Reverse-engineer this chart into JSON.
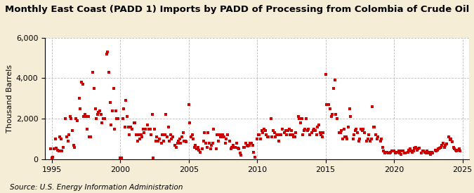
{
  "title": "Monthly East Coast (PADD 1) Imports by PADD of Processing from Colombia of Crude Oil",
  "ylabel": "Thousand Barrels",
  "source": "Source: U.S. Energy Information Administration",
  "bg_color": "#F5EDD6",
  "plot_bg_color": "#FFFFFF",
  "marker_color": "#CC0000",
  "marker": "s",
  "markersize": 3.5,
  "xlim": [
    1994.5,
    2025.5
  ],
  "ylim": [
    0,
    6000
  ],
  "yticks": [
    0,
    2000,
    4000,
    6000
  ],
  "ytick_labels": [
    "0",
    "2,000",
    "4,000",
    "6,000"
  ],
  "xticks": [
    1995,
    2000,
    2005,
    2010,
    2015,
    2020,
    2025
  ],
  "grid_style": "--",
  "grid_color": "#BBBBBB",
  "title_fontsize": 9.5,
  "label_fontsize": 8,
  "tick_fontsize": 8,
  "source_fontsize": 7.5,
  "data": {
    "dates": [
      1994.917,
      1995.0,
      1995.083,
      1995.167,
      1995.25,
      1995.333,
      1995.417,
      1995.5,
      1995.583,
      1995.667,
      1995.75,
      1995.833,
      1996.0,
      1996.083,
      1996.167,
      1996.25,
      1996.333,
      1996.417,
      1996.5,
      1996.583,
      1996.667,
      1996.75,
      1996.833,
      1997.0,
      1997.083,
      1997.167,
      1997.25,
      1997.333,
      1997.417,
      1997.5,
      1997.583,
      1997.667,
      1997.75,
      1997.833,
      1998.0,
      1998.083,
      1998.167,
      1998.25,
      1998.333,
      1998.417,
      1998.5,
      1998.583,
      1998.667,
      1998.75,
      1998.833,
      1999.0,
      1999.083,
      1999.167,
      1999.25,
      1999.333,
      1999.417,
      1999.5,
      1999.583,
      1999.667,
      1999.75,
      1999.833,
      2000.0,
      2000.083,
      2000.167,
      2000.25,
      2000.333,
      2000.417,
      2000.5,
      2000.583,
      2000.667,
      2000.75,
      2000.833,
      2001.0,
      2001.083,
      2001.167,
      2001.25,
      2001.333,
      2001.417,
      2001.5,
      2001.583,
      2001.667,
      2001.75,
      2001.833,
      2002.0,
      2002.083,
      2002.167,
      2002.25,
      2002.333,
      2002.417,
      2002.5,
      2002.583,
      2002.667,
      2002.75,
      2002.833,
      2003.0,
      2003.083,
      2003.167,
      2003.25,
      2003.333,
      2003.417,
      2003.5,
      2003.583,
      2003.667,
      2003.75,
      2003.833,
      2004.0,
      2004.083,
      2004.167,
      2004.25,
      2004.333,
      2004.417,
      2004.5,
      2004.583,
      2004.667,
      2004.75,
      2004.833,
      2005.0,
      2005.083,
      2005.167,
      2005.25,
      2005.333,
      2005.417,
      2005.5,
      2005.583,
      2005.667,
      2005.75,
      2005.833,
      2006.0,
      2006.083,
      2006.167,
      2006.25,
      2006.333,
      2006.417,
      2006.5,
      2006.583,
      2006.667,
      2006.75,
      2006.833,
      2007.0,
      2007.083,
      2007.167,
      2007.25,
      2007.333,
      2007.417,
      2007.5,
      2007.583,
      2007.667,
      2007.75,
      2007.833,
      2008.0,
      2008.083,
      2008.167,
      2008.25,
      2008.333,
      2008.417,
      2008.5,
      2008.583,
      2008.667,
      2008.75,
      2008.833,
      2009.0,
      2009.083,
      2009.167,
      2009.25,
      2009.333,
      2009.417,
      2009.5,
      2009.583,
      2009.667,
      2009.75,
      2009.833,
      2010.0,
      2010.083,
      2010.167,
      2010.25,
      2010.333,
      2010.417,
      2010.5,
      2010.583,
      2010.667,
      2010.75,
      2010.833,
      2011.0,
      2011.083,
      2011.167,
      2011.25,
      2011.333,
      2011.417,
      2011.5,
      2011.583,
      2011.667,
      2011.75,
      2011.833,
      2012.0,
      2012.083,
      2012.167,
      2012.25,
      2012.333,
      2012.417,
      2012.5,
      2012.583,
      2012.667,
      2012.75,
      2012.833,
      2013.0,
      2013.083,
      2013.167,
      2013.25,
      2013.333,
      2013.417,
      2013.5,
      2013.583,
      2013.667,
      2013.75,
      2013.833,
      2014.0,
      2014.083,
      2014.167,
      2014.25,
      2014.333,
      2014.417,
      2014.5,
      2014.583,
      2014.667,
      2014.75,
      2014.833,
      2015.0,
      2015.083,
      2015.167,
      2015.25,
      2015.333,
      2015.417,
      2015.5,
      2015.583,
      2015.667,
      2015.75,
      2015.833,
      2016.0,
      2016.083,
      2016.167,
      2016.25,
      2016.333,
      2016.417,
      2016.5,
      2016.583,
      2016.667,
      2016.75,
      2016.833,
      2017.0,
      2017.083,
      2017.167,
      2017.25,
      2017.333,
      2017.417,
      2017.5,
      2017.583,
      2017.667,
      2017.75,
      2017.833,
      2018.0,
      2018.083,
      2018.167,
      2018.25,
      2018.333,
      2018.417,
      2018.5,
      2018.583,
      2018.667,
      2018.75,
      2018.833,
      2019.0,
      2019.083,
      2019.167,
      2019.25,
      2019.333,
      2019.417,
      2019.5,
      2019.583,
      2019.667,
      2019.75,
      2019.833,
      2020.0,
      2020.083,
      2020.167,
      2020.25,
      2020.333,
      2020.417,
      2020.5,
      2020.583,
      2020.667,
      2020.75,
      2020.833,
      2021.0,
      2021.083,
      2021.167,
      2021.25,
      2021.333,
      2021.417,
      2021.5,
      2021.583,
      2021.667,
      2021.75,
      2021.833,
      2022.0,
      2022.083,
      2022.167,
      2022.25,
      2022.333,
      2022.417,
      2022.5,
      2022.583,
      2022.667,
      2022.75,
      2022.833,
      2023.0,
      2023.083,
      2023.167,
      2023.25,
      2023.333,
      2023.417,
      2023.5,
      2023.583,
      2023.667,
      2023.75,
      2023.833,
      2024.0,
      2024.083,
      2024.167,
      2024.25,
      2024.333,
      2024.417,
      2024.5,
      2024.583,
      2024.667,
      2024.75,
      2024.833
    ],
    "values": [
      500,
      50,
      100,
      500,
      1000,
      550,
      450,
      400,
      1100,
      1000,
      400,
      600,
      2000,
      1100,
      900,
      1200,
      2100,
      2000,
      1400,
      700,
      600,
      2000,
      1900,
      3000,
      2500,
      3800,
      3700,
      2100,
      2200,
      2100,
      1500,
      2100,
      1100,
      1100,
      4300,
      3500,
      2500,
      2000,
      2200,
      2300,
      2400,
      2200,
      1800,
      2000,
      2000,
      5200,
      5300,
      4300,
      2800,
      1700,
      2400,
      3500,
      1500,
      2400,
      2000,
      2000,
      50,
      50,
      2000,
      2500,
      1600,
      2900,
      2100,
      1600,
      1200,
      1600,
      1500,
      1800,
      1800,
      1200,
      900,
      1200,
      1000,
      1200,
      1100,
      1500,
      1300,
      1500,
      1700,
      1500,
      1500,
      1200,
      2200,
      50,
      1500,
      900,
      1100,
      900,
      1000,
      800,
      1200,
      900,
      1200,
      2200,
      1100,
      1600,
      900,
      1200,
      1000,
      1100,
      700,
      600,
      800,
      900,
      1000,
      800,
      1100,
      1300,
      900,
      900,
      850,
      2700,
      1800,
      1100,
      1200,
      1000,
      600,
      700,
      500,
      600,
      450,
      350,
      500,
      900,
      1300,
      800,
      600,
      1300,
      800,
      500,
      700,
      800,
      1500,
      500,
      1200,
      900,
      1200,
      1100,
      1100,
      1200,
      1100,
      800,
      1000,
      1200,
      900,
      500,
      600,
      700,
      600,
      600,
      800,
      550,
      500,
      300,
      200,
      600,
      600,
      800,
      700,
      650,
      700,
      800,
      800,
      700,
      350,
      100,
      1000,
      1200,
      1200,
      1000,
      1400,
      1300,
      1500,
      1400,
      1200,
      1100,
      1100,
      2000,
      1100,
      1400,
      1300,
      1100,
      1200,
      1200,
      900,
      1200,
      1200,
      1500,
      1300,
      1400,
      1200,
      1400,
      1500,
      1200,
      1400,
      1200,
      1100,
      1100,
      1300,
      2100,
      2000,
      1800,
      2000,
      1200,
      1400,
      1500,
      2000,
      1400,
      1500,
      1200,
      1300,
      1400,
      1500,
      1400,
      1200,
      1600,
      1700,
      1300,
      1200,
      1100,
      1300,
      4200,
      2700,
      2700,
      2700,
      2500,
      2100,
      2200,
      3500,
      3900,
      2200,
      2000,
      1300,
      1300,
      1400,
      1000,
      1500,
      1100,
      1100,
      1000,
      1600,
      2500,
      2100,
      1000,
      1200,
      1400,
      1500,
      1300,
      900,
      1000,
      1500,
      1400,
      1500,
      1300,
      900,
      1000,
      1200,
      900,
      1000,
      2600,
      1600,
      1600,
      1200,
      1000,
      1100,
      900,
      1000,
      600,
      400,
      300,
      350,
      350,
      300,
      300,
      350,
      400,
      400,
      300,
      350,
      350,
      400,
      300,
      250,
      400,
      400,
      300,
      300,
      350,
      450,
      500,
      400,
      350,
      400,
      550,
      600,
      450,
      500,
      550,
      300,
      400,
      400,
      350,
      300,
      400,
      300,
      350,
      250,
      350,
      300,
      450,
      400,
      450,
      500,
      550,
      600,
      700,
      800,
      600,
      700,
      750,
      1100,
      950,
      1000,
      850,
      600,
      500,
      450,
      400,
      450,
      500,
      400
    ]
  }
}
